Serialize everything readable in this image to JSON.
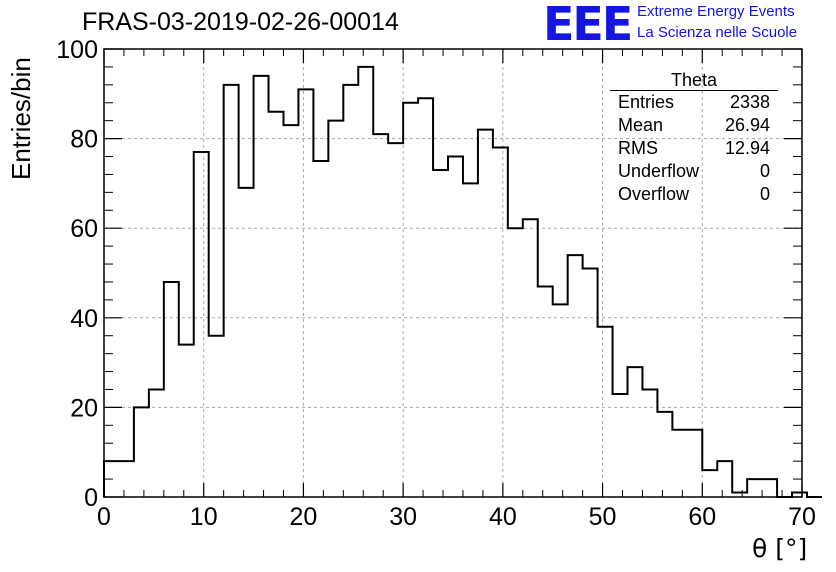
{
  "header": {
    "run_title": "FRAS-03-2019-02-26-00014",
    "logo_text": "EEE",
    "logo_line1": "Extreme Energy Events",
    "logo_line2": "La Scienza nelle Scuole"
  },
  "stats_box": {
    "title": "Theta",
    "rows": [
      {
        "label": "Entries",
        "value": "2338"
      },
      {
        "label": "Mean",
        "value": "26.94"
      },
      {
        "label": "RMS",
        "value": "12.94"
      },
      {
        "label": "Underflow",
        "value": "0"
      },
      {
        "label": "Overflow",
        "value": "0"
      }
    ]
  },
  "colors": {
    "line": "#000000",
    "grid": "#a8a8a8",
    "logo": "#1515e0"
  },
  "chart_data": {
    "type": "histogram",
    "title": "FRAS-03-2019-02-26-00014",
    "xlabel": "θ [°]",
    "ylabel": "Entries/bin",
    "xlim": [
      0,
      70
    ],
    "ylim": [
      0,
      100
    ],
    "x_ticks": [
      "0",
      "10",
      "20",
      "30",
      "40",
      "50",
      "60",
      "70"
    ],
    "y_ticks": [
      "0",
      "20",
      "40",
      "60",
      "80",
      "100"
    ],
    "grid": true,
    "bin_width": 1.5,
    "bin_edges_start": 0,
    "values": [
      8,
      8,
      20,
      24,
      48,
      34,
      77,
      36,
      92,
      69,
      94,
      86,
      83,
      91,
      75,
      84,
      92,
      96,
      81,
      79,
      88,
      89,
      73,
      76,
      70,
      82,
      78,
      60,
      62,
      47,
      43,
      54,
      51,
      38,
      23,
      29,
      24,
      19,
      15,
      15,
      6,
      8,
      1,
      4,
      4,
      0,
      1,
      0
    ]
  }
}
